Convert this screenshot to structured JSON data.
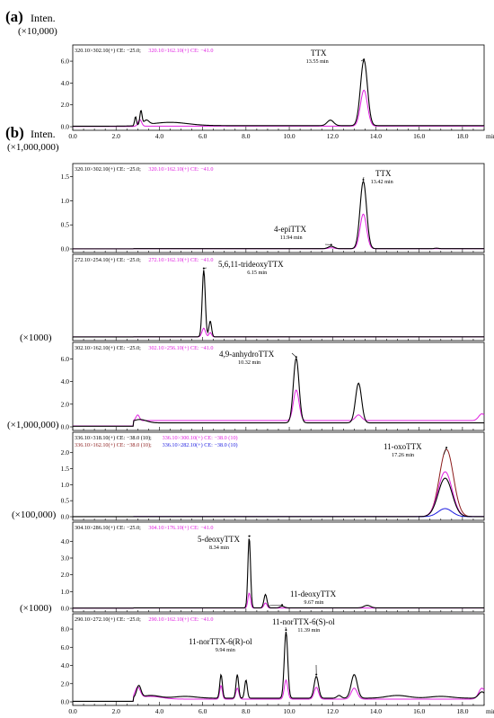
{
  "figure": {
    "label_a": "(a)",
    "label_b": "(b)",
    "inten": "Inten.",
    "x_unit": "min",
    "x_ticks": [
      "0.0",
      "2.0",
      "4.0",
      "6.0",
      "8.0",
      "10.0",
      "12.0",
      "14.0",
      "16.0",
      "18.0"
    ]
  },
  "colors": {
    "black": "#000000",
    "magenta": "#e020e0",
    "darkred": "#8b1a1a",
    "blue": "#1a1ae0"
  },
  "chart_data": [
    {
      "id": "a",
      "type": "line",
      "scale_label": "(×10,000)",
      "legend": {
        "black": "320.10>302.10(+) CE: −25.0;",
        "pink": "320.10>162.10(+) CE: −41.0"
      },
      "xlim": [
        0,
        19
      ],
      "ylim": [
        0,
        6.5
      ],
      "yticks": [
        "0.0",
        "2.0",
        "4.0",
        "6.0"
      ],
      "peaks": [
        {
          "name": "TTX",
          "time": "13.55 min",
          "x": 13.45,
          "y": 6.0
        }
      ],
      "series": [
        {
          "color": "black",
          "baseline": 0.1,
          "peaks": [
            [
              2.9,
              0.8,
              0.04
            ],
            [
              3.15,
              1.3,
              0.05
            ],
            [
              3.4,
              0.4,
              0.12
            ],
            [
              4.5,
              0.3,
              0.8
            ],
            [
              11.9,
              0.5,
              0.15
            ],
            [
              13.45,
              6.0,
              0.16
            ]
          ]
        },
        {
          "color": "pink",
          "baseline": 0.05,
          "peaks": [
            [
              3.1,
              0.6,
              0.08
            ],
            [
              13.45,
              3.3,
              0.16
            ]
          ]
        }
      ]
    },
    {
      "id": "b1",
      "type": "line",
      "scale_label": "(×1,000,000)",
      "legend": {
        "black": "320.10>302.10(+) CE: −25.0;",
        "pink": "320.10>162.10(+) CE: −41.0"
      },
      "xlim": [
        0,
        19
      ],
      "ylim": [
        0,
        1.55
      ],
      "yticks": [
        "0.0",
        "0.5",
        "1.0",
        "1.5"
      ],
      "peaks": [
        {
          "name": "TTX",
          "time": "13.42 min",
          "x": 13.42,
          "y": 1.4
        },
        {
          "name": "4-epiTTX",
          "time": "11.94 min",
          "x": 11.94,
          "y": 0.05
        }
      ],
      "series": [
        {
          "color": "black",
          "baseline": 0.005,
          "peaks": [
            [
              11.94,
              0.05,
              0.14
            ],
            [
              13.42,
              1.4,
              0.15
            ],
            [
              16.8,
              0.01,
              0.1
            ]
          ]
        },
        {
          "color": "pink",
          "baseline": 0.004,
          "peaks": [
            [
              11.94,
              0.02,
              0.14
            ],
            [
              13.42,
              0.72,
              0.15
            ]
          ]
        }
      ]
    },
    {
      "id": "b2",
      "type": "line",
      "scale_label": "(×1000)",
      "legend": {
        "black": "272.10>254.10(+) CE: −25.0;",
        "pink": "272.10>162.10(+) CE: −41.0"
      },
      "xlim": [
        0,
        19
      ],
      "ylim": [
        0,
        1.0
      ],
      "yticks": [],
      "peaks": [
        {
          "name": "5,6,11-trideoxyTTX",
          "time": "6.15 min",
          "x": 6.05,
          "y": 0.93
        }
      ],
      "series": [
        {
          "color": "black",
          "baseline": 0.002,
          "peaks": [
            [
              6.05,
              0.93,
              0.07
            ],
            [
              6.35,
              0.22,
              0.06
            ]
          ]
        },
        {
          "color": "pink",
          "baseline": 0.002,
          "peaks": [
            [
              6.05,
              0.12,
              0.08
            ],
            [
              6.35,
              0.06,
              0.06
            ]
          ]
        }
      ]
    },
    {
      "id": "b3",
      "type": "line",
      "scale_label": "(×1,000,000)",
      "legend": {
        "black": "302.10>162.10(+) CE: −25.0;",
        "pink": "302.10>256.10(+) CE: −41.0"
      },
      "xlim": [
        0,
        19
      ],
      "ylim": [
        0,
        6.5
      ],
      "yticks": [
        "0.0",
        "2.0",
        "4.0",
        "6.0"
      ],
      "peaks": [
        {
          "name": "4,9-anhydroTTX",
          "time": "10.32 min",
          "x": 10.32,
          "y": 6.0
        }
      ],
      "series": [
        {
          "color": "black",
          "baseline": 0.35,
          "peaks": [
            [
              3.1,
              0.3,
              0.3
            ],
            [
              10.32,
              5.7,
              0.13
            ],
            [
              13.2,
              3.5,
              0.14
            ]
          ]
        },
        {
          "color": "pink",
          "baseline": 0.55,
          "peaks": [
            [
              3.0,
              0.5,
              0.08
            ],
            [
              10.32,
              2.7,
              0.13
            ],
            [
              13.2,
              0.5,
              0.14
            ],
            [
              18.9,
              0.6,
              0.15
            ]
          ]
        }
      ]
    },
    {
      "id": "b4",
      "type": "line",
      "scale_label": "(×100,000)",
      "legend": {
        "black": "336.10>318.10(+) CE: −38.0 (10);",
        "pink": "336.10>300.10(+) CE: −38.0 (10)",
        "darkred": "336.10>162.10(+) CE: −38.0 (10);",
        "blue": "336.10>282.10(+) CE: −38.0 (10)"
      },
      "xlim": [
        0,
        19
      ],
      "ylim": [
        0,
        2.3
      ],
      "yticks": [
        "0.0",
        "0.5",
        "1.0",
        "1.5",
        "2.0"
      ],
      "peaks": [
        {
          "name": "11-oxoTTX",
          "time": "17.26 min",
          "x": 17.26,
          "y": 2.1
        }
      ],
      "series": [
        {
          "color": "darkred",
          "baseline": 0.003,
          "peaks": [
            [
              17.26,
              2.1,
              0.32
            ]
          ]
        },
        {
          "color": "pink",
          "baseline": 0.003,
          "peaks": [
            [
              17.2,
              1.4,
              0.32
            ]
          ]
        },
        {
          "color": "black",
          "baseline": 0.003,
          "peaks": [
            [
              17.2,
              1.2,
              0.32
            ]
          ]
        },
        {
          "color": "blue",
          "baseline": 0.003,
          "peaks": [
            [
              17.2,
              0.25,
              0.32
            ]
          ]
        }
      ]
    },
    {
      "id": "b5",
      "type": "line",
      "scale_label": "(×1000)",
      "legend": {
        "black": "304.10>286.10(+) CE: −25.0;",
        "pink": "304.10>176.10(+) CE: −41.0"
      },
      "xlim": [
        0,
        19
      ],
      "ylim": [
        0,
        4.5
      ],
      "yticks": [
        "0.0",
        "1.0",
        "2.0",
        "3.0",
        "4.0"
      ],
      "peaks": [
        {
          "name": "5-deoxyTTX",
          "time": "8.34 min",
          "x": 8.15,
          "y": 4.2
        },
        {
          "name": "11-deoxyTTX",
          "time": "9.67 min",
          "x": 9.67,
          "y": 0.1
        }
      ],
      "series": [
        {
          "color": "black",
          "baseline": 0.03,
          "peaks": [
            [
              8.15,
              4.2,
              0.06
            ],
            [
              8.9,
              0.8,
              0.07
            ],
            [
              9.67,
              0.1,
              0.1
            ],
            [
              13.6,
              0.15,
              0.15
            ]
          ]
        },
        {
          "color": "pink",
          "baseline": 0.02,
          "peaks": [
            [
              8.15,
              0.9,
              0.06
            ],
            [
              8.9,
              0.3,
              0.07
            ]
          ]
        }
      ]
    },
    {
      "id": "b6",
      "type": "line",
      "scale_label": "",
      "legend": {
        "black": "290.10>272.10(+) CE: −25.0;",
        "pink": "290.10>162.10(+) CE: −41.0"
      },
      "xlim": [
        0,
        19
      ],
      "ylim": [
        0,
        8.5
      ],
      "yticks": [
        "0.0",
        "2.0",
        "4.0",
        "6.0",
        "8.0"
      ],
      "peaks": [
        {
          "name": "11-norTTX-6(R)-ol",
          "time": "9.94 min",
          "x": 9.85,
          "y": 7.7
        },
        {
          "name": "11-norTTX-6(S)-ol",
          "time": "11.39 min",
          "x": 11.25,
          "y": 2.8
        }
      ],
      "series": [
        {
          "color": "black",
          "baseline": 0.4,
          "peaks": [
            [
              3.05,
              1.3,
              0.1
            ],
            [
              3.6,
              0.3,
              0.4
            ],
            [
              5.2,
              0.2,
              0.5
            ],
            [
              6.85,
              2.6,
              0.06
            ],
            [
              7.6,
              2.6,
              0.06
            ],
            [
              8.0,
              2.0,
              0.06
            ],
            [
              9.85,
              7.3,
              0.08
            ],
            [
              11.25,
              2.4,
              0.1
            ],
            [
              12.3,
              0.3,
              0.1
            ],
            [
              13.0,
              2.6,
              0.14
            ],
            [
              15.0,
              0.3,
              0.5
            ],
            [
              17.0,
              0.2,
              0.5
            ],
            [
              18.9,
              0.7,
              0.15
            ]
          ]
        },
        {
          "color": "pink",
          "baseline": 0.3,
          "peaks": [
            [
              3.0,
              1.2,
              0.12
            ],
            [
              3.6,
              0.3,
              0.5
            ],
            [
              6.85,
              1.5,
              0.06
            ],
            [
              7.6,
              1.2,
              0.07
            ],
            [
              9.85,
              2.1,
              0.08
            ],
            [
              11.25,
              1.3,
              0.1
            ],
            [
              13.0,
              1.2,
              0.14
            ],
            [
              18.9,
              1.2,
              0.15
            ]
          ]
        }
      ]
    }
  ]
}
